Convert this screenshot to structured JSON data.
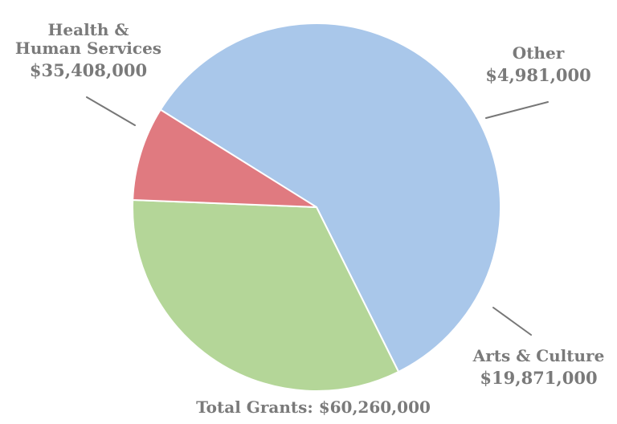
{
  "chart_data": {
    "type": "pie",
    "total_label": "Total Grants: $60,260,000",
    "slices": [
      {
        "label_lines": [
          "Health &",
          "Human Services"
        ],
        "amount_label": "$35,408,000",
        "value": 35408000,
        "color": "#a9c7ea"
      },
      {
        "label_lines": [
          "Arts & Culture"
        ],
        "amount_label": "$19,871,000",
        "value": 19871000,
        "color": "#b4d698"
      },
      {
        "label_lines": [
          "Other"
        ],
        "amount_label": "$4,981,000",
        "value": 4981000,
        "color": "#e07a80"
      }
    ]
  }
}
